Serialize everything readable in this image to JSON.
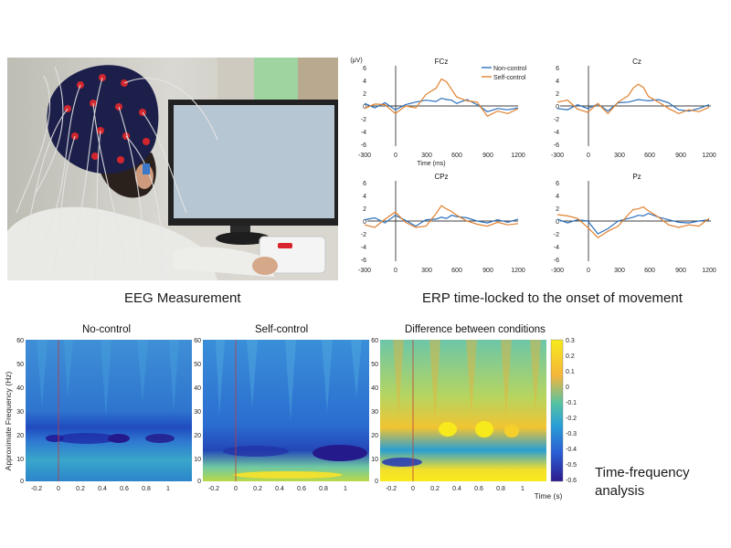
{
  "captions": {
    "eeg": "EEG Measurement",
    "erp": "ERP time-locked to the onset of movement",
    "tf_line1": "Time-frequency",
    "tf_line2": "analysis"
  },
  "colors": {
    "non_control": "#2a6fba",
    "self_control": "#e0812f",
    "tf_low": "#2c1b8c",
    "tf_high": "#f7ea1c"
  },
  "erp": {
    "unit_label": "(μV)",
    "xlabel": "Time (ms)",
    "legend": [
      "Non-control",
      "Self-control"
    ],
    "yticks": [
      "6",
      "4",
      "2",
      "0",
      "-2",
      "-4",
      "-6"
    ],
    "xticks": [
      "-300",
      "0",
      "300",
      "600",
      "900",
      "1200"
    ],
    "panels": [
      {
        "name": "FCz"
      },
      {
        "name": "Cz"
      },
      {
        "name": "CPz"
      },
      {
        "name": "Pz"
      }
    ]
  },
  "tf": {
    "ylabel": "Approximate Frequency (Hz)",
    "xlabel": "Time (s)",
    "yticks": [
      "60",
      "50",
      "40",
      "30",
      "20",
      "10",
      "0"
    ],
    "xticks": [
      "-0.2",
      "0",
      "0.2",
      "0.4",
      "0.6",
      "0.8",
      "1"
    ],
    "colorbar_ticks": [
      "0.3",
      "0.2",
      "0.1",
      "0",
      "-0.1",
      "-0.2",
      "-0.3",
      "-0.4",
      "-0.5",
      "-0.6"
    ],
    "panels": [
      {
        "title": "No-control"
      },
      {
        "title": "Self-control"
      },
      {
        "title": "Difference between conditions"
      }
    ]
  },
  "chart_data": [
    {
      "type": "line",
      "name": "FCz",
      "x": [
        -300,
        -200,
        -100,
        0,
        100,
        200,
        300,
        400,
        450,
        500,
        550,
        600,
        700,
        800,
        900,
        1000,
        1100,
        1200
      ],
      "xlim": [
        -300,
        1200
      ],
      "ylim": [
        -6,
        6
      ],
      "xlabel": "Time (ms)",
      "ylabel": "(μV)",
      "series": [
        {
          "name": "Non-control",
          "values": [
            0.4,
            -0.3,
            0.5,
            -0.6,
            0.2,
            0.6,
            0.9,
            0.7,
            1.2,
            1.0,
            0.9,
            0.4,
            1.0,
            0.2,
            -0.9,
            -0.4,
            -0.6,
            -0.3
          ]
        },
        {
          "name": "Self-control",
          "values": [
            -0.4,
            0.3,
            0.2,
            -1.2,
            0.0,
            -0.3,
            1.8,
            2.8,
            4.2,
            3.8,
            2.6,
            1.4,
            0.8,
            0.6,
            -1.6,
            -0.8,
            -1.2,
            -0.4
          ]
        }
      ]
    },
    {
      "type": "line",
      "name": "Cz",
      "x": [
        -300,
        -200,
        -100,
        0,
        100,
        200,
        300,
        400,
        450,
        500,
        550,
        600,
        700,
        800,
        900,
        1000,
        1100,
        1200
      ],
      "xlim": [
        -300,
        1200
      ],
      "ylim": [
        -6,
        6
      ],
      "xlabel": "Time (ms)",
      "ylabel": "(μV)",
      "series": [
        {
          "name": "Non-control",
          "values": [
            -0.4,
            -0.6,
            0.2,
            -0.4,
            0.3,
            -0.8,
            0.5,
            0.6,
            0.8,
            1.0,
            0.9,
            0.8,
            1.0,
            0.5,
            -0.6,
            -0.8,
            -0.4,
            0.2
          ]
        },
        {
          "name": "Self-control",
          "values": [
            0.6,
            0.9,
            -0.5,
            -1.0,
            0.4,
            -1.2,
            0.6,
            1.6,
            2.8,
            3.4,
            2.9,
            1.5,
            0.6,
            -0.4,
            -1.2,
            -0.6,
            -0.9,
            -0.2
          ]
        }
      ]
    },
    {
      "type": "line",
      "name": "CPz",
      "x": [
        -300,
        -200,
        -100,
        0,
        100,
        200,
        300,
        400,
        450,
        500,
        550,
        600,
        700,
        800,
        900,
        1000,
        1100,
        1200
      ],
      "xlim": [
        -300,
        1200
      ],
      "ylim": [
        -6,
        6
      ],
      "xlabel": "Time (ms)",
      "ylabel": "(μV)",
      "series": [
        {
          "name": "Non-control",
          "values": [
            0.2,
            0.5,
            -0.3,
            0.9,
            0.1,
            -0.8,
            0.2,
            0.3,
            0.6,
            0.4,
            0.9,
            0.7,
            0.5,
            0.0,
            -0.3,
            0.2,
            -0.2,
            0.3
          ]
        },
        {
          "name": "Self-control",
          "values": [
            -0.6,
            -1.0,
            0.3,
            1.4,
            -0.2,
            -1.0,
            -0.8,
            1.2,
            2.4,
            1.9,
            1.5,
            0.9,
            0.0,
            -0.5,
            -0.8,
            -0.2,
            -0.6,
            -0.4
          ]
        }
      ]
    },
    {
      "type": "line",
      "name": "Pz",
      "x": [
        -300,
        -200,
        -100,
        0,
        100,
        200,
        300,
        400,
        450,
        500,
        550,
        600,
        700,
        800,
        900,
        1000,
        1100,
        1200
      ],
      "xlim": [
        -300,
        1200
      ],
      "ylim": [
        -6,
        6
      ],
      "xlabel": "Time (ms)",
      "ylabel": "(μV)",
      "series": [
        {
          "name": "Non-control",
          "values": [
            0.3,
            -0.3,
            0.2,
            0.0,
            -2.0,
            -1.2,
            0.0,
            0.4,
            0.6,
            0.9,
            0.8,
            1.2,
            0.6,
            0.2,
            -0.2,
            -0.3,
            0.0,
            0.2
          ]
        },
        {
          "name": "Self-control",
          "values": [
            1.0,
            0.8,
            0.4,
            -1.0,
            -2.6,
            -1.6,
            -0.8,
            1.0,
            1.8,
            1.9,
            2.2,
            1.6,
            0.6,
            -0.6,
            -1.0,
            -0.6,
            -0.8,
            0.4
          ]
        }
      ]
    }
  ]
}
